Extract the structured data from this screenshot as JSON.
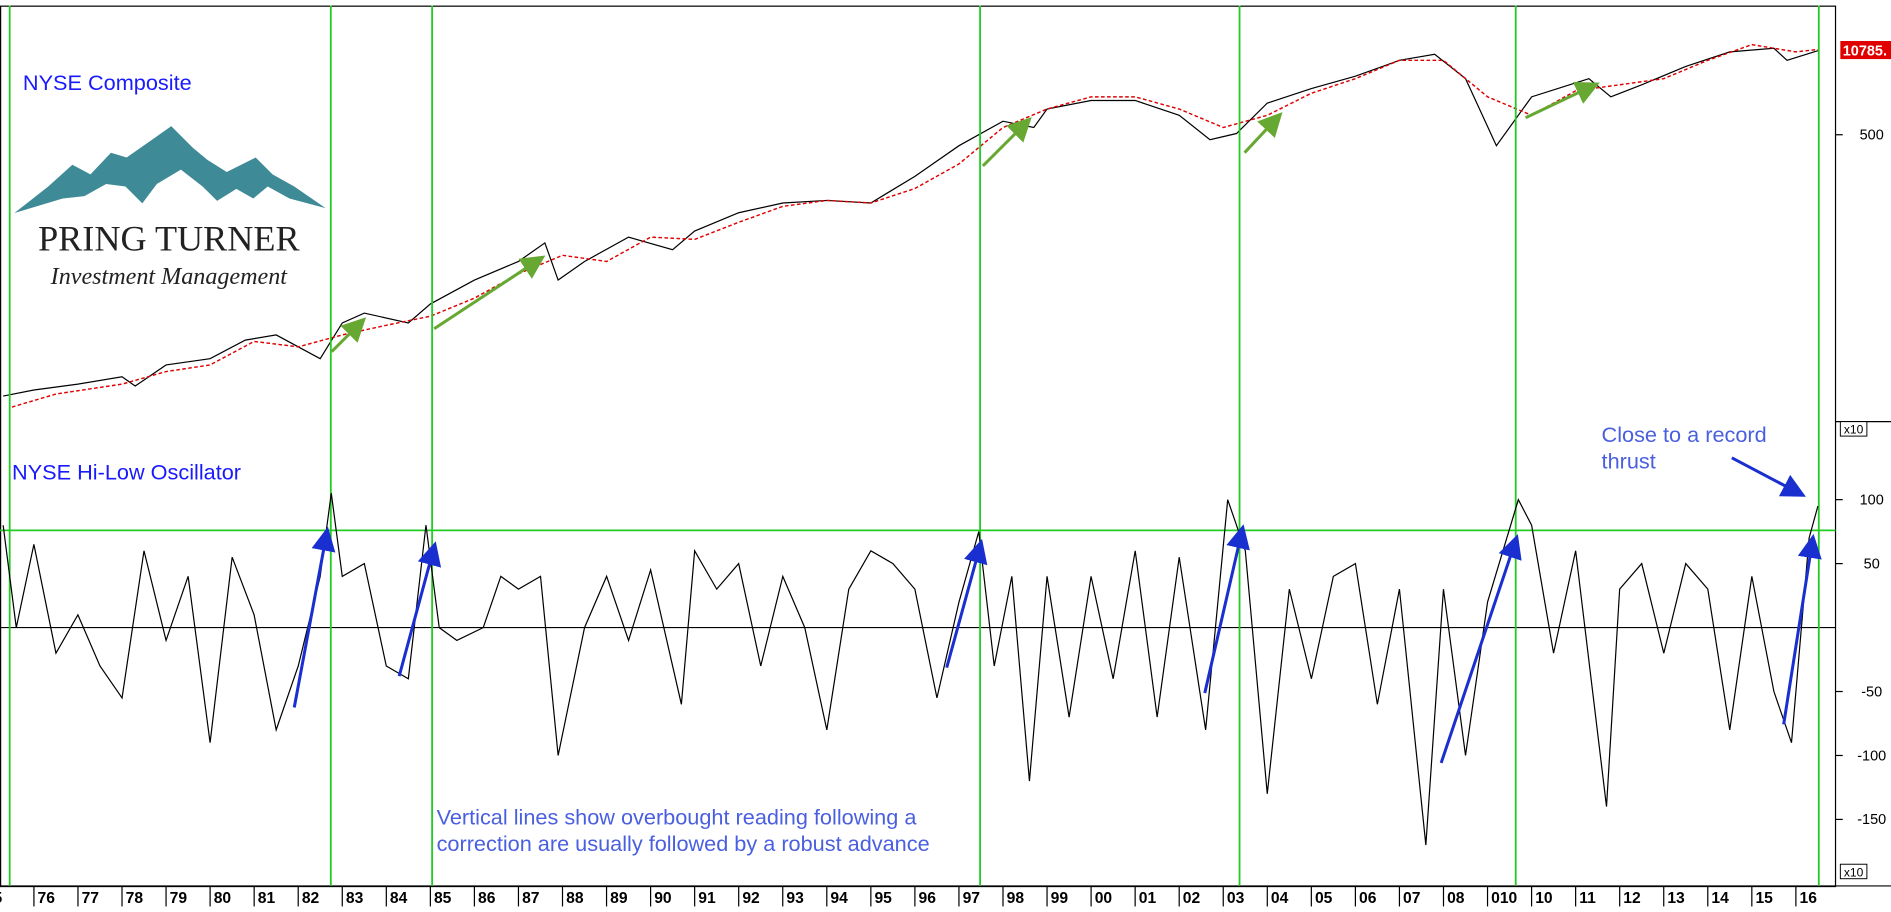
{
  "chart_data": [
    {
      "type": "line",
      "title": "NYSE Composite",
      "log_scale": true,
      "xlim": [
        1975.23,
        2016.9
      ],
      "ylim": [
        47,
        1450
      ],
      "yticks": [
        500
      ],
      "scale_note": "x10",
      "last_label": "10785.",
      "last_label_color": "#e00000",
      "series": [
        {
          "color": "#000000",
          "x": [
            1975.3,
            1976,
            1977,
            1978,
            1978.3,
            1979,
            1980,
            1980.8,
            1981.5,
            1982.5,
            1983,
            1983.5,
            1984.5,
            1985,
            1986,
            1987,
            1987.6,
            1987.9,
            1988.5,
            1989.5,
            1990.5,
            1991,
            1992,
            1993,
            1994,
            1995,
            1996,
            1997,
            1998,
            1998.7,
            1999,
            2000,
            2001,
            2002,
            2002.7,
            2003.3,
            2004,
            2005,
            2006,
            2007,
            2007.8,
            2008.5,
            2009.2,
            2010,
            2011.3,
            2011.8,
            2012.5,
            2013.5,
            2014.5,
            2015.5,
            2015.8,
            2016.5
          ],
          "values": [
            58,
            61,
            64,
            68,
            63,
            75,
            79,
            92,
            96,
            79,
            106,
            115,
            106,
            124,
            151,
            176,
            205,
            151,
            176,
            215,
            194,
            226,
            263,
            285,
            291,
            285,
            355,
            457,
            559,
            531,
            618,
            663,
            663,
            587,
            480,
            505,
            649,
            732,
            810,
            923,
            970,
            794,
            457,
            683,
            794,
            683,
            755,
            878,
            990,
            1020,
            923,
            1000
          ]
        },
        {
          "color": "#e00000",
          "dashed": true,
          "x": [
            1975.5,
            1976.5,
            1978,
            1979,
            1980,
            1981,
            1982,
            1983,
            1984,
            1985,
            1986,
            1987,
            1988,
            1989,
            1990,
            1991,
            1992,
            1993,
            1994,
            1995,
            1996,
            1997,
            1998,
            1999,
            2000,
            2001,
            2002,
            2003,
            2004,
            2005,
            2006,
            2007,
            2008,
            2009,
            2010,
            2011,
            2012,
            2013,
            2014,
            2015,
            2016,
            2016.5
          ],
          "values": [
            53,
            59,
            64,
            71,
            75,
            91,
            87,
            96,
            104,
            112,
            130,
            159,
            185,
            176,
            215,
            211,
            243,
            277,
            291,
            285,
            321,
            393,
            531,
            618,
            683,
            683,
            618,
            531,
            587,
            704,
            794,
            923,
            923,
            683,
            587,
            718,
            755,
            794,
            923,
            1051,
            990,
            1010
          ]
        }
      ]
    },
    {
      "type": "line",
      "title": "NYSE Hi-Low Oscillator",
      "xlim": [
        1975.23,
        2016.9
      ],
      "ylim": [
        -202,
        161
      ],
      "yticks": [
        100,
        50,
        -50,
        -100,
        -150
      ],
      "scale_note": "x10",
      "zero_line": 0,
      "overbought_level": 76,
      "level_color": "#22cc22",
      "vertical_lines": [
        1975.45,
        1982.74,
        1985.04,
        1997.48,
        2003.37,
        2009.64,
        2016.52
      ],
      "xticks": [
        {
          "value": 1975,
          "label": "5"
        },
        {
          "value": 1976,
          "label": "76"
        },
        {
          "value": 1977,
          "label": "77"
        },
        {
          "value": 1978,
          "label": "78"
        },
        {
          "value": 1979,
          "label": "79"
        },
        {
          "value": 1980,
          "label": "80"
        },
        {
          "value": 1981,
          "label": "81"
        },
        {
          "value": 1982,
          "label": "82"
        },
        {
          "value": 1983,
          "label": "83"
        },
        {
          "value": 1984,
          "label": "84"
        },
        {
          "value": 1985,
          "label": "85"
        },
        {
          "value": 1986,
          "label": "86"
        },
        {
          "value": 1987,
          "label": "87"
        },
        {
          "value": 1988,
          "label": "88"
        },
        {
          "value": 1989,
          "label": "89"
        },
        {
          "value": 1990,
          "label": "90"
        },
        {
          "value": 1991,
          "label": "91"
        },
        {
          "value": 1992,
          "label": "92"
        },
        {
          "value": 1993,
          "label": "93"
        },
        {
          "value": 1994,
          "label": "94"
        },
        {
          "value": 1995,
          "label": "95"
        },
        {
          "value": 1996,
          "label": "96"
        },
        {
          "value": 1997,
          "label": "97"
        },
        {
          "value": 1998,
          "label": "98"
        },
        {
          "value": 1999,
          "label": "99"
        },
        {
          "value": 2000,
          "label": "00"
        },
        {
          "value": 2001,
          "label": "01"
        },
        {
          "value": 2002,
          "label": "02"
        },
        {
          "value": 2003,
          "label": "03"
        },
        {
          "value": 2004,
          "label": "04"
        },
        {
          "value": 2005,
          "label": "05"
        },
        {
          "value": 2006,
          "label": "06"
        },
        {
          "value": 2007,
          "label": "07"
        },
        {
          "value": 2008,
          "label": "08"
        },
        {
          "value": 2009,
          "label": "010"
        },
        {
          "value": 2010,
          "label": "10"
        },
        {
          "value": 2011,
          "label": "11"
        },
        {
          "value": 2012,
          "label": "12"
        },
        {
          "value": 2013,
          "label": "13"
        },
        {
          "value": 2014,
          "label": "14"
        },
        {
          "value": 2015,
          "label": "15"
        },
        {
          "value": 2016,
          "label": "16"
        }
      ],
      "annotations": [
        [
          "Close to a record",
          "thrust"
        ],
        [
          "Vertical lines show overbought reading following a",
          "correction are usually followed by a robust advance"
        ]
      ],
      "series": [
        {
          "color": "#000000",
          "x": [
            1975.3,
            1975.6,
            1976,
            1976.5,
            1977,
            1977.5,
            1978,
            1978.5,
            1979,
            1979.5,
            1980,
            1980.5,
            1981,
            1981.5,
            1982,
            1982.5,
            1982.75,
            1983,
            1983.5,
            1984,
            1984.5,
            1984.9,
            1985.2,
            1985.6,
            1986.2,
            1986.6,
            1987,
            1987.5,
            1987.9,
            1988.5,
            1989,
            1989.5,
            1990,
            1990.7,
            1991,
            1991.5,
            1992,
            1992.5,
            1993,
            1993.5,
            1994,
            1994.5,
            1995,
            1995.5,
            1996,
            1996.5,
            1997,
            1997.45,
            1997.8,
            1998.2,
            1998.6,
            1999,
            1999.5,
            2000,
            2000.5,
            2001,
            2001.5,
            2002,
            2002.6,
            2003.1,
            2003.5,
            2004,
            2004.5,
            2005,
            2005.5,
            2006,
            2006.5,
            2007,
            2007.6,
            2008,
            2008.5,
            2009,
            2009.7,
            2010,
            2010.5,
            2011,
            2011.7,
            2012,
            2012.5,
            2013,
            2013.5,
            2014,
            2014.5,
            2015,
            2015.5,
            2015.9,
            2016.3,
            2016.5
          ],
          "values": [
            80,
            0,
            65,
            -20,
            10,
            -30,
            -55,
            60,
            -10,
            40,
            -90,
            55,
            10,
            -80,
            -30,
            40,
            105,
            40,
            50,
            -30,
            -40,
            80,
            0,
            -10,
            0,
            40,
            30,
            40,
            -100,
            0,
            40,
            -10,
            45,
            -60,
            60,
            30,
            50,
            -30,
            40,
            0,
            -80,
            30,
            60,
            50,
            30,
            -55,
            20,
            75,
            -30,
            40,
            -120,
            40,
            -70,
            40,
            -40,
            60,
            -70,
            55,
            -80,
            100,
            60,
            -130,
            30,
            -40,
            40,
            50,
            -60,
            30,
            -170,
            30,
            -100,
            20,
            100,
            80,
            -20,
            60,
            -140,
            30,
            50,
            -20,
            50,
            30,
            -80,
            40,
            -50,
            -90,
            70,
            95
          ]
        }
      ]
    }
  ]
}
